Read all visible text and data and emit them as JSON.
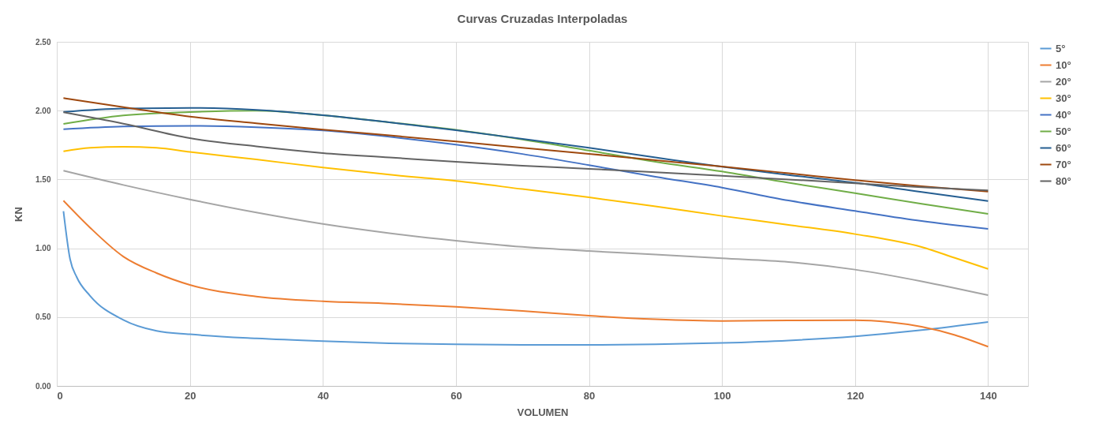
{
  "chart_data": {
    "type": "line",
    "title": "Curvas Cruzadas Interpoladas",
    "xlabel": "VOLUMEN",
    "ylabel": "KN",
    "xlim": [
      0,
      146
    ],
    "xticks": [
      0,
      20,
      40,
      60,
      80,
      100,
      120,
      140
    ],
    "ylim": [
      0,
      2.5
    ],
    "yticks": [
      {
        "value": 0,
        "label": "0.00"
      },
      {
        "value": 0.5,
        "label": "0.50"
      },
      {
        "value": 1,
        "label": "1.00"
      },
      {
        "value": 1.5,
        "label": "1.50"
      },
      {
        "value": 2,
        "label": "2.00"
      },
      {
        "value": 2.5,
        "label": "2.50"
      }
    ],
    "grid": true,
    "legend": "right",
    "marker": "none",
    "series": [
      {
        "name": "5°",
        "color": "#5b9bd5",
        "x": [
          1,
          2,
          3,
          5,
          10,
          15,
          20,
          30,
          40,
          50,
          60,
          70,
          80,
          90,
          100,
          110,
          120,
          130,
          140
        ],
        "values": [
          1.27,
          0.92,
          0.79,
          0.655,
          0.48,
          0.4,
          0.375,
          0.345,
          0.325,
          0.31,
          0.302,
          0.298,
          0.298,
          0.302,
          0.312,
          0.33,
          0.36,
          0.405,
          0.464
        ]
      },
      {
        "name": "10°",
        "color": "#ed7d31",
        "x": [
          1,
          5,
          10,
          15,
          20,
          30,
          40,
          50,
          60,
          70,
          80,
          90,
          100,
          110,
          120,
          125,
          130,
          135,
          140
        ],
        "values": [
          1.346,
          1.15,
          0.94,
          0.82,
          0.734,
          0.65,
          0.615,
          0.598,
          0.575,
          0.545,
          0.51,
          0.484,
          0.472,
          0.476,
          0.478,
          0.465,
          0.43,
          0.37,
          0.285
        ]
      },
      {
        "name": "20°",
        "color": "#a5a5a5",
        "x": [
          1,
          10,
          20,
          30,
          40,
          50,
          60,
          70,
          80,
          90,
          100,
          110,
          120,
          130,
          140
        ],
        "values": [
          1.564,
          1.46,
          1.355,
          1.26,
          1.177,
          1.11,
          1.055,
          1.01,
          0.98,
          0.955,
          0.927,
          0.9,
          0.845,
          0.76,
          0.659
        ]
      },
      {
        "name": "30°",
        "color": "#ffc000",
        "x": [
          1,
          5,
          10,
          15,
          20,
          30,
          40,
          50,
          60,
          70,
          80,
          90,
          100,
          110,
          120,
          130,
          135,
          140
        ],
        "values": [
          1.705,
          1.73,
          1.737,
          1.73,
          1.7,
          1.645,
          1.587,
          1.535,
          1.489,
          1.43,
          1.37,
          1.305,
          1.235,
          1.17,
          1.103,
          1.009,
          0.93,
          0.85
        ]
      },
      {
        "name": "40°",
        "color": "#4472c4",
        "x": [
          1,
          10,
          20,
          30,
          40,
          50,
          60,
          70,
          80,
          90,
          100,
          110,
          120,
          130,
          140
        ],
        "values": [
          1.865,
          1.885,
          1.89,
          1.88,
          1.856,
          1.81,
          1.753,
          1.685,
          1.604,
          1.52,
          1.441,
          1.347,
          1.271,
          1.198,
          1.141
        ]
      },
      {
        "name": "50°",
        "color": "#70ad47",
        "x": [
          1,
          10,
          20,
          30,
          40,
          50,
          60,
          70,
          80,
          90,
          100,
          110,
          120,
          130,
          140
        ],
        "values": [
          1.904,
          1.965,
          1.99,
          2.0,
          1.967,
          1.915,
          1.86,
          1.79,
          1.71,
          1.628,
          1.558,
          1.476,
          1.401,
          1.323,
          1.25
        ]
      },
      {
        "name": "60°",
        "color": "#255e91",
        "x": [
          1,
          10,
          20,
          30,
          40,
          50,
          60,
          70,
          80,
          90,
          100,
          110,
          120,
          130,
          140
        ],
        "values": [
          1.991,
          2.016,
          2.02,
          2.005,
          1.967,
          1.915,
          1.858,
          1.795,
          1.73,
          1.66,
          1.592,
          1.533,
          1.476,
          1.409,
          1.343
        ]
      },
      {
        "name": "70°",
        "color": "#9e480e",
        "x": [
          1,
          10,
          20,
          30,
          40,
          50,
          60,
          70,
          80,
          90,
          100,
          110,
          120,
          130,
          140
        ],
        "values": [
          2.091,
          2.025,
          1.957,
          1.908,
          1.862,
          1.82,
          1.776,
          1.73,
          1.686,
          1.64,
          1.594,
          1.545,
          1.495,
          1.451,
          1.412
        ]
      },
      {
        "name": "80°",
        "color": "#636363",
        "x": [
          1,
          10,
          20,
          30,
          40,
          50,
          60,
          70,
          80,
          90,
          100,
          110,
          120,
          130,
          140
        ],
        "values": [
          1.988,
          1.905,
          1.8,
          1.74,
          1.692,
          1.66,
          1.628,
          1.6,
          1.577,
          1.552,
          1.527,
          1.5,
          1.472,
          1.443,
          1.42
        ]
      }
    ]
  }
}
